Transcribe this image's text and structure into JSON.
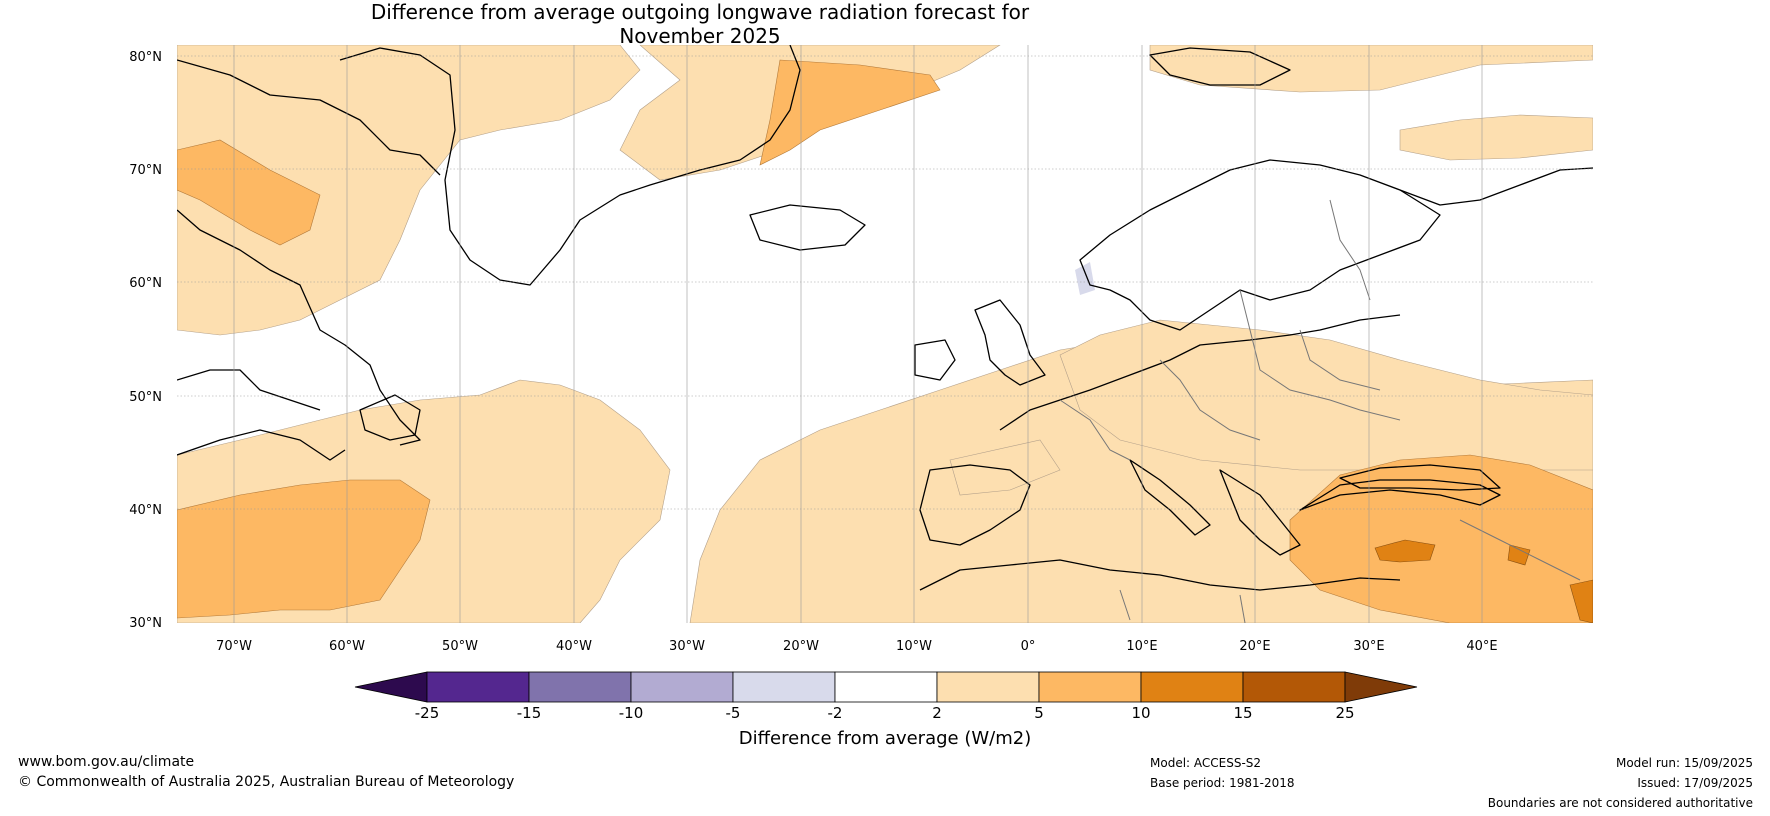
{
  "title": {
    "line1": "Difference from average outgoing longwave radiation forecast for",
    "line2": "November 2025"
  },
  "map": {
    "lat_labels": [
      "80°N",
      "70°N",
      "60°N",
      "50°N",
      "40°N",
      "30°N"
    ],
    "lon_labels": [
      "70°W",
      "60°W",
      "50°W",
      "40°W",
      "30°W",
      "20°W",
      "10°W",
      "0°",
      "10°E",
      "20°E",
      "30°E",
      "40°E"
    ]
  },
  "colorbar": {
    "ticks": [
      "-25",
      "-15",
      "-10",
      "-5",
      "-2",
      "2",
      "5",
      "10",
      "15",
      "25"
    ],
    "label": "Difference from average (W/m2)",
    "colors": [
      "#2d0a4e",
      "#54278f",
      "#8073ac",
      "#b2abd2",
      "#d8daeb",
      "#ffffff",
      "#fddfb0",
      "#fdb863",
      "#e08214",
      "#b35806",
      "#7f3b08"
    ]
  },
  "footer": {
    "website": "www.bom.gov.au/climate",
    "copyright": "© Commonwealth of Australia 2025, Australian Bureau of Meteorology",
    "model": "Model: ACCESS-S2",
    "base_period": "Base period: 1981-2018",
    "model_run": "Model run: 15/09/2025",
    "issued": "Issued: 17/09/2025",
    "boundaries": "Boundaries are not considered authoritative"
  }
}
